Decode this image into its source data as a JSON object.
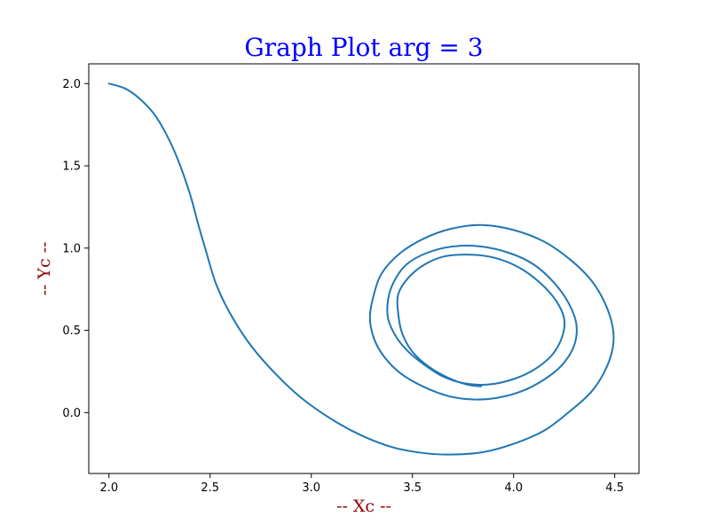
{
  "chart_data": {
    "type": "line",
    "title": "Graph Plot arg = 3",
    "xlabel": "-- Xc --",
    "ylabel": "-- Yc --",
    "xlim": [
      1.9,
      4.62
    ],
    "ylim": [
      -0.37,
      2.12
    ],
    "xticks": [
      2.0,
      2.5,
      3.0,
      3.5,
      4.0,
      4.5
    ],
    "xtick_labels": [
      "2.0",
      "2.5",
      "3.0",
      "3.5",
      "4.0",
      "4.5"
    ],
    "yticks": [
      0.0,
      0.5,
      1.0,
      1.5,
      2.0
    ],
    "ytick_labels": [
      "0.0",
      "0.5",
      "1.0",
      "1.5",
      "2.0"
    ],
    "grid": false,
    "colors": {
      "line": "#1f77b4",
      "title": "#0000ff",
      "axis_label": "#8b0000"
    },
    "series": [
      {
        "points": [
          [
            2.0,
            2.0
          ],
          [
            2.08,
            1.97
          ],
          [
            2.15,
            1.91
          ],
          [
            2.22,
            1.82
          ],
          [
            2.28,
            1.7
          ],
          [
            2.34,
            1.54
          ],
          [
            2.4,
            1.33
          ],
          [
            2.44,
            1.15
          ],
          [
            2.48,
            0.98
          ],
          [
            2.53,
            0.78
          ],
          [
            2.6,
            0.6
          ],
          [
            2.7,
            0.41
          ],
          [
            2.82,
            0.24
          ],
          [
            2.95,
            0.09
          ],
          [
            3.1,
            -0.04
          ],
          [
            3.25,
            -0.14
          ],
          [
            3.4,
            -0.21
          ],
          [
            3.55,
            -0.245
          ],
          [
            3.69,
            -0.255
          ],
          [
            3.85,
            -0.24
          ],
          [
            4.0,
            -0.19
          ],
          [
            4.15,
            -0.11
          ],
          [
            4.27,
            0.0
          ],
          [
            4.38,
            0.12
          ],
          [
            4.45,
            0.25
          ],
          [
            4.49,
            0.39
          ],
          [
            4.49,
            0.52
          ],
          [
            4.45,
            0.67
          ],
          [
            4.38,
            0.81
          ],
          [
            4.28,
            0.93
          ],
          [
            4.15,
            1.04
          ],
          [
            4.0,
            1.11
          ],
          [
            3.85,
            1.14
          ],
          [
            3.7,
            1.12
          ],
          [
            3.56,
            1.06
          ],
          [
            3.44,
            0.97
          ],
          [
            3.35,
            0.85
          ],
          [
            3.31,
            0.72
          ],
          [
            3.29,
            0.58
          ],
          [
            3.31,
            0.45
          ],
          [
            3.36,
            0.34
          ],
          [
            3.44,
            0.24
          ],
          [
            3.55,
            0.16
          ],
          [
            3.68,
            0.1
          ],
          [
            3.8,
            0.08
          ],
          [
            3.92,
            0.09
          ],
          [
            4.04,
            0.13
          ],
          [
            4.15,
            0.2
          ],
          [
            4.24,
            0.29
          ],
          [
            4.3,
            0.41
          ],
          [
            4.31,
            0.54
          ],
          [
            4.27,
            0.67
          ],
          [
            4.2,
            0.79
          ],
          [
            4.1,
            0.9
          ],
          [
            3.98,
            0.97
          ],
          [
            3.84,
            1.01
          ],
          [
            3.7,
            1.01
          ],
          [
            3.57,
            0.97
          ],
          [
            3.47,
            0.9
          ],
          [
            3.41,
            0.8
          ],
          [
            3.38,
            0.69
          ],
          [
            3.38,
            0.57
          ],
          [
            3.42,
            0.46
          ],
          [
            3.48,
            0.37
          ],
          [
            3.56,
            0.29
          ],
          [
            3.65,
            0.22
          ],
          [
            3.75,
            0.18
          ],
          [
            3.87,
            0.17
          ],
          [
            3.99,
            0.2
          ],
          [
            4.1,
            0.26
          ],
          [
            4.19,
            0.35
          ],
          [
            4.24,
            0.46
          ],
          [
            4.25,
            0.57
          ],
          [
            4.21,
            0.68
          ],
          [
            4.13,
            0.79
          ],
          [
            4.03,
            0.88
          ],
          [
            3.91,
            0.94
          ],
          [
            3.79,
            0.96
          ],
          [
            3.66,
            0.95
          ],
          [
            3.56,
            0.9
          ],
          [
            3.48,
            0.82
          ],
          [
            3.43,
            0.72
          ],
          [
            3.43,
            0.6
          ],
          [
            3.45,
            0.48
          ],
          [
            3.5,
            0.37
          ],
          [
            3.58,
            0.28
          ],
          [
            3.68,
            0.21
          ],
          [
            3.77,
            0.17
          ],
          [
            3.84,
            0.16
          ]
        ]
      }
    ]
  }
}
